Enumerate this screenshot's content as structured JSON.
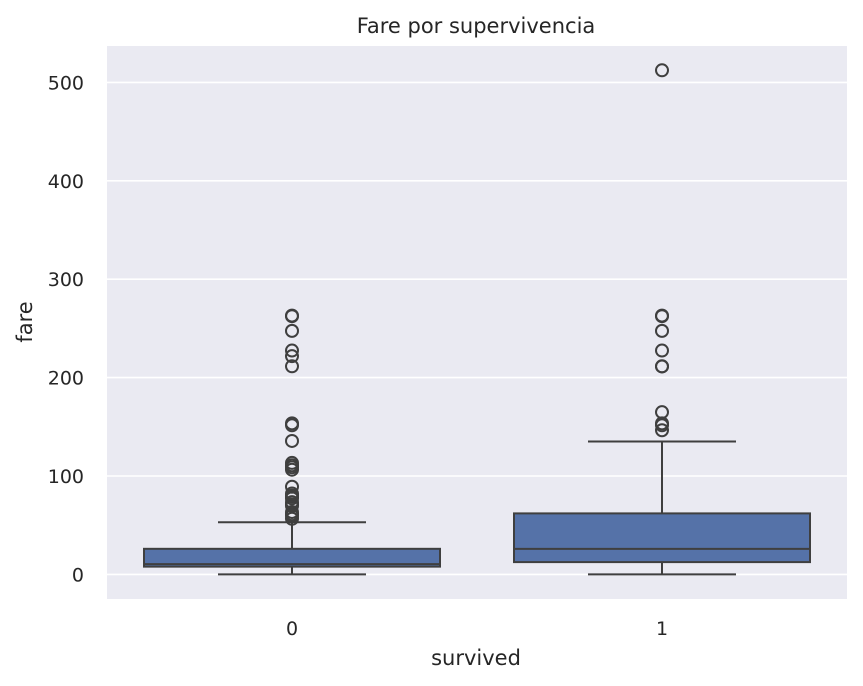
{
  "chart_data": {
    "type": "box",
    "title": "Fare por supervivencia",
    "xlabel": "survived",
    "ylabel": "fare",
    "categories": [
      "0",
      "1"
    ],
    "ylim": [
      -25,
      537
    ],
    "yticks": [
      0,
      100,
      200,
      300,
      400,
      500
    ],
    "grid": true,
    "colors": {
      "box_fill": "#5572a8",
      "box_edge": "#3f3f3f",
      "plot_bg": "#eaeaf2",
      "grid": "#ffffff",
      "text": "#262626"
    },
    "boxes": [
      {
        "category": "0",
        "whisker_low": 0,
        "q1": 7.9,
        "median": 10.5,
        "q3": 26,
        "whisker_high": 53,
        "outliers": [
          56.5,
          59.4,
          61.2,
          63.4,
          69.55,
          71.3,
          73.5,
          77.3,
          79.2,
          80.0,
          82.2,
          89.1,
          106.4,
          108.9,
          110.9,
          113.3,
          135.6,
          151.55,
          153.5,
          211.5,
          221.8,
          227.5,
          247.5,
          262.4,
          263
        ]
      },
      {
        "category": "1",
        "whisker_low": 0,
        "q1": 12.5,
        "median": 26,
        "q3": 62,
        "whisker_high": 135,
        "outliers": [
          146.5,
          151.55,
          153.5,
          164.9,
          211.3,
          211.5,
          227.5,
          247.5,
          262.4,
          263,
          512.3
        ]
      }
    ]
  }
}
